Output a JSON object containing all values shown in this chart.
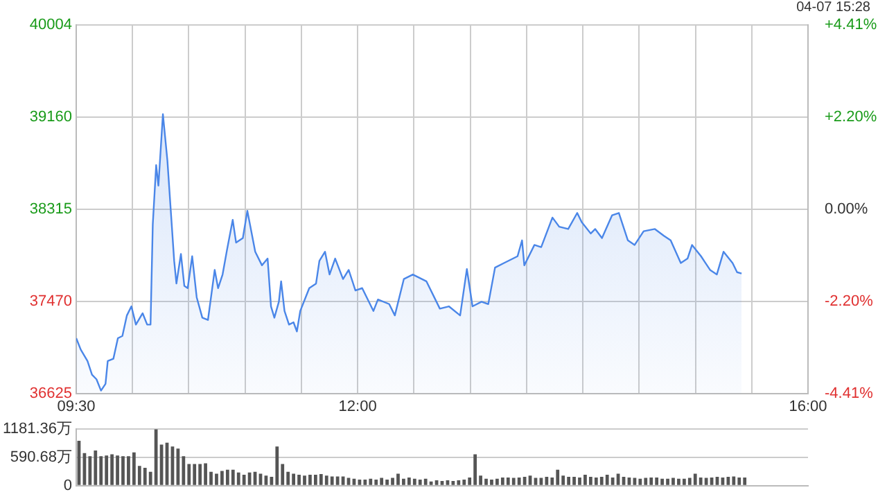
{
  "chart_data": [
    {
      "type": "area",
      "annotations": [
        "04-07 15:28"
      ],
      "xlim": [
        9.5,
        16
      ],
      "xticks": [
        {
          "value": 9.5,
          "label": "09:30"
        },
        {
          "value": 10,
          "label": null
        },
        {
          "value": 10.5,
          "label": null
        },
        {
          "value": 11,
          "label": null
        },
        {
          "value": 11.5,
          "label": null
        },
        {
          "value": 12,
          "label": "12:00"
        },
        {
          "value": 12.5,
          "label": null
        },
        {
          "value": 13,
          "label": null
        },
        {
          "value": 13.5,
          "label": null
        },
        {
          "value": 14,
          "label": null
        },
        {
          "value": 14.5,
          "label": null
        },
        {
          "value": 15,
          "label": null
        },
        {
          "value": 15.5,
          "label": null
        },
        {
          "value": 16,
          "label": "16:00"
        }
      ],
      "ylim": [
        36625,
        40004
      ],
      "yticks": [
        36625,
        37470,
        38315,
        39160,
        40004
      ],
      "y2lim": [
        -4.41,
        4.41
      ],
      "y2ticks": [
        {
          "value": -4.41,
          "label": "-4.41%"
        },
        {
          "value": -2.2,
          "label": "-2.20%"
        },
        {
          "value": 0,
          "label": "0.00%"
        },
        {
          "value": 2.2,
          "label": "+2.20%"
        },
        {
          "value": 4.41,
          "label": "+4.41%"
        }
      ],
      "grid": true,
      "x": [
        9.5,
        9.54,
        9.6,
        9.64,
        9.68,
        9.72,
        9.76,
        9.78,
        9.83,
        9.87,
        9.91,
        9.95,
        9.99,
        10.03,
        10.09,
        10.13,
        10.16,
        10.18,
        10.21,
        10.23,
        10.27,
        10.31,
        10.34,
        10.37,
        10.39,
        10.43,
        10.46,
        10.49,
        10.53,
        10.57,
        10.62,
        10.67,
        10.73,
        10.76,
        10.8,
        10.84,
        10.89,
        10.92,
        10.98,
        11.02,
        11.09,
        11.15,
        11.2,
        11.23,
        11.26,
        11.3,
        11.32,
        11.35,
        11.39,
        11.43,
        11.46,
        11.49,
        11.57,
        11.63,
        11.66,
        11.71,
        11.75,
        11.8,
        11.87,
        11.92,
        11.98,
        12.04,
        12.14,
        12.18,
        12.28,
        12.33,
        12.41,
        12.49,
        12.61,
        12.73,
        12.81,
        12.91,
        12.97,
        13.02,
        13.1,
        13.16,
        13.22,
        13.3,
        13.42,
        13.46,
        13.48,
        13.57,
        13.63,
        13.73,
        13.79,
        13.87,
        13.95,
        13.99,
        14.07,
        14.11,
        14.17,
        14.26,
        14.32,
        14.4,
        14.46,
        14.54,
        14.64,
        14.72,
        14.78,
        14.87,
        14.93,
        14.97,
        15.05,
        15.13,
        15.19,
        15.25,
        15.33,
        15.37,
        15.41
      ],
      "series": [
        {
          "color": "#4a86e8",
          "values": [
            37133,
            37029,
            36924,
            36799,
            36757,
            36653,
            36715,
            36924,
            36945,
            37133,
            37154,
            37342,
            37425,
            37258,
            37362,
            37258,
            37258,
            38176,
            38719,
            38531,
            39186,
            38760,
            38301,
            37842,
            37634,
            37905,
            37613,
            37592,
            37884,
            37508,
            37321,
            37300,
            37759,
            37592,
            37717,
            37947,
            38218,
            38009,
            38051,
            38301,
            37926,
            37801,
            37863,
            37425,
            37321,
            37467,
            37655,
            37383,
            37258,
            37279,
            37195,
            37383,
            37592,
            37634,
            37842,
            37926,
            37717,
            37863,
            37675,
            37759,
            37571,
            37592,
            37383,
            37488,
            37446,
            37342,
            37675,
            37717,
            37655,
            37404,
            37425,
            37342,
            37767,
            37425,
            37467,
            37446,
            37780,
            37822,
            37884,
            38030,
            37801,
            37988,
            37968,
            38239,
            38155,
            38134,
            38281,
            38197,
            38093,
            38134,
            38051,
            38260,
            38281,
            38030,
            37988,
            38114,
            38134,
            38072,
            38030,
            37822,
            37863,
            37988,
            37884,
            37759,
            37717,
            37926,
            37822,
            37738,
            37726
          ]
        }
      ]
    },
    {
      "type": "bar",
      "tick_labels": "y",
      "grid": "y",
      "color": "#555555",
      "ylim": [
        0,
        1181.36
      ],
      "yticks": [
        0,
        {
          "value": 590.68,
          "label": "590.68万"
        },
        {
          "value": 1181.36,
          "label": "1181.36万"
        }
      ],
      "categories": [
        null,
        null,
        null,
        null,
        null,
        null,
        null,
        null,
        null,
        null,
        null,
        null,
        null,
        null,
        null,
        null,
        null,
        null,
        null,
        null,
        null,
        null,
        null,
        null,
        null,
        null,
        null,
        null,
        null,
        null,
        null,
        null,
        null,
        null,
        null,
        null,
        null,
        null,
        null,
        null,
        null,
        null,
        null,
        null,
        null,
        null,
        null,
        null,
        null,
        null,
        null,
        null,
        null,
        null,
        null,
        null,
        null,
        null,
        null,
        null,
        null,
        null,
        null,
        null,
        null,
        null,
        null,
        null,
        null,
        null,
        null,
        null,
        null,
        null,
        null,
        null,
        null,
        null,
        null,
        null,
        null,
        null,
        null,
        null,
        null,
        null,
        null,
        null,
        null,
        null,
        null,
        null,
        null,
        null,
        null,
        null,
        null,
        null,
        null,
        null,
        null,
        null,
        null,
        null,
        null,
        null,
        null,
        null,
        null,
        null,
        null,
        null,
        null,
        null,
        null,
        null,
        null,
        null,
        null,
        null,
        null,
        null,
        null,
        null,
        null,
        null,
        null,
        null,
        null,
        null,
        null,
        null,
        null
      ],
      "values": [
        938,
        680,
        615,
        736,
        615,
        631,
        655,
        631,
        615,
        615,
        696,
        413,
        372,
        291,
        1181,
        858,
        898,
        817,
        777,
        615,
        453,
        453,
        453,
        469,
        291,
        251,
        307,
        332,
        332,
        275,
        227,
        275,
        291,
        251,
        210,
        186,
        817,
        453,
        291,
        251,
        227,
        210,
        227,
        227,
        243,
        210,
        194,
        194,
        194,
        162,
        146,
        129,
        129,
        146,
        129,
        162,
        129,
        162,
        251,
        146,
        170,
        146,
        129,
        146,
        89,
        113,
        97,
        113,
        97,
        113,
        129,
        170,
        655,
        210,
        146,
        129,
        146,
        170,
        170,
        162,
        170,
        186,
        210,
        162,
        162,
        186,
        170,
        332,
        210,
        186,
        186,
        170,
        227,
        186,
        170,
        186,
        227,
        170,
        251,
        186,
        170,
        162,
        146,
        162,
        170,
        170,
        146,
        146,
        162,
        146,
        146,
        162,
        251,
        170,
        162,
        170,
        186,
        170,
        186,
        194,
        170,
        170,
        null,
        null,
        null,
        null,
        null,
        null,
        null,
        null,
        null,
        null,
        null
      ]
    }
  ]
}
